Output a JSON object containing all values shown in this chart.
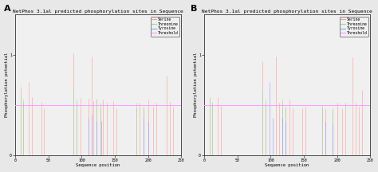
{
  "title": "NetPhos 3.1al predicted phosphorylation sites in Sequence",
  "xlabel": "Sequence position",
  "ylabel": "Phosphorylation potential",
  "xlim": [
    0,
    250
  ],
  "ylim": [
    0,
    1.4
  ],
  "threshold": 0.5,
  "panel_A_label": "A",
  "panel_B_label": "B",
  "serine_color": "#ff9999",
  "threonine_color": "#99dd99",
  "tyrosine_color": "#9999ff",
  "threshold_color": "#ff99ff",
  "legend_items": [
    "Serine",
    "Threonine",
    "Tyrosine",
    "Threshold"
  ],
  "panel_A": {
    "serine": [
      [
        8,
        0.68
      ],
      [
        12,
        0.52
      ],
      [
        20,
        0.73
      ],
      [
        25,
        0.58
      ],
      [
        40,
        0.53
      ],
      [
        43,
        0.47
      ],
      [
        88,
        1.01
      ],
      [
        92,
        0.53
      ],
      [
        98,
        0.57
      ],
      [
        110,
        0.56
      ],
      [
        115,
        0.98
      ],
      [
        118,
        0.54
      ],
      [
        122,
        0.56
      ],
      [
        128,
        0.48
      ],
      [
        132,
        0.55
      ],
      [
        138,
        0.52
      ],
      [
        148,
        0.54
      ],
      [
        153,
        0.47
      ],
      [
        182,
        0.47
      ],
      [
        187,
        0.52
      ],
      [
        193,
        0.48
      ],
      [
        200,
        0.55
      ],
      [
        208,
        0.48
      ],
      [
        213,
        0.52
      ],
      [
        228,
        0.79
      ],
      [
        233,
        0.53
      ],
      [
        238,
        0.48
      ]
    ],
    "threonine": [
      [
        8,
        0.62
      ],
      [
        12,
        0.55
      ],
      [
        88,
        0.66
      ],
      [
        93,
        0.55
      ],
      [
        122,
        0.56
      ],
      [
        128,
        0.52
      ],
      [
        183,
        0.52
      ],
      [
        193,
        0.48
      ]
    ],
    "tyrosine": [
      [
        110,
        0.37
      ],
      [
        115,
        0.4
      ],
      [
        123,
        0.34
      ],
      [
        130,
        0.34
      ],
      [
        193,
        0.37
      ],
      [
        200,
        0.34
      ]
    ]
  },
  "panel_B": {
    "serine": [
      [
        8,
        0.55
      ],
      [
        12,
        0.52
      ],
      [
        20,
        0.58
      ],
      [
        25,
        0.49
      ],
      [
        88,
        0.93
      ],
      [
        93,
        0.52
      ],
      [
        108,
        0.98
      ],
      [
        113,
        0.52
      ],
      [
        118,
        0.55
      ],
      [
        123,
        0.48
      ],
      [
        128,
        0.55
      ],
      [
        133,
        0.47
      ],
      [
        148,
        0.47
      ],
      [
        153,
        0.48
      ],
      [
        178,
        0.49
      ],
      [
        183,
        0.47
      ],
      [
        193,
        0.47
      ],
      [
        200,
        0.52
      ],
      [
        208,
        0.47
      ],
      [
        213,
        0.52
      ],
      [
        223,
        0.97
      ],
      [
        228,
        0.52
      ],
      [
        233,
        0.48
      ],
      [
        238,
        0.65
      ]
    ],
    "threonine": [
      [
        8,
        0.58
      ],
      [
        12,
        0.53
      ],
      [
        88,
        0.65
      ],
      [
        93,
        0.55
      ],
      [
        118,
        0.52
      ],
      [
        123,
        0.48
      ],
      [
        178,
        0.48
      ],
      [
        193,
        0.45
      ]
    ],
    "tyrosine": [
      [
        98,
        0.73
      ],
      [
        103,
        0.37
      ],
      [
        118,
        0.37
      ],
      [
        123,
        0.34
      ],
      [
        183,
        0.34
      ],
      [
        193,
        0.31
      ]
    ]
  },
  "background_color": "#e8e8e8",
  "plot_bg_color": "#f0f0f0",
  "fontsize_title": 4.5,
  "fontsize_axis": 4.0,
  "fontsize_tick": 3.5,
  "fontsize_legend": 3.5,
  "fontsize_panel_label": 8,
  "linewidth_bar": 0.4,
  "linewidth_threshold": 0.7
}
